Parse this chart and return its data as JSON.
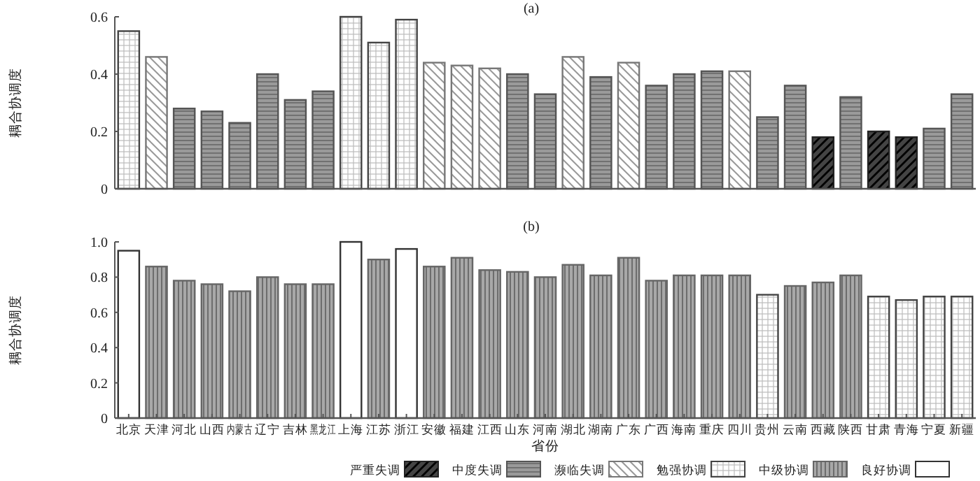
{
  "chart_data": [
    {
      "type": "bar",
      "title": "(a)",
      "ylabel": "耦合协调度",
      "categories": [
        null,
        null,
        null,
        null,
        null,
        null,
        null,
        null,
        null,
        null,
        null,
        null,
        null,
        null,
        null,
        null,
        null,
        null,
        null,
        null,
        null,
        null,
        null,
        null,
        null,
        null,
        null,
        null,
        null,
        null,
        null
      ],
      "tick_labels": "y",
      "ylim": [
        0,
        0.6
      ],
      "yticks": [
        0,
        0.2,
        0.4,
        0.6
      ],
      "series": [
        {
          "color": "#222222",
          "values": [
            null,
            null,
            null,
            null,
            null,
            null,
            null,
            null,
            null,
            null,
            null,
            null,
            null,
            null,
            null,
            null,
            null,
            null,
            null,
            null,
            null,
            null,
            null,
            null,
            null,
            0.18,
            null,
            0.2,
            0.18,
            null,
            null
          ]
        },
        {
          "color": "#555555",
          "values": [
            null,
            null,
            0.28,
            0.27,
            0.23,
            0.4,
            0.31,
            0.34,
            null,
            null,
            null,
            null,
            null,
            null,
            0.4,
            0.33,
            null,
            0.39,
            null,
            0.36,
            0.4,
            0.41,
            null,
            0.25,
            0.36,
            null,
            0.32,
            null,
            null,
            0.21,
            0.33
          ]
        },
        {
          "color": "#777777",
          "values": [
            null,
            0.46,
            null,
            null,
            null,
            null,
            null,
            null,
            null,
            null,
            null,
            0.44,
            0.43,
            0.42,
            null,
            null,
            0.46,
            null,
            0.44,
            null,
            null,
            null,
            0.41,
            null,
            null,
            null,
            null,
            null,
            null,
            null,
            null
          ]
        },
        {
          "color": "#444444",
          "values": [
            0.55,
            null,
            null,
            null,
            null,
            null,
            null,
            null,
            0.6,
            0.51,
            0.59,
            null,
            null,
            null,
            null,
            null,
            null,
            null,
            null,
            null,
            null,
            null,
            null,
            null,
            null,
            null,
            null,
            null,
            null,
            null,
            null
          ]
        }
      ]
    },
    {
      "type": "bar",
      "title": "(b)",
      "ylabel": "耦合协调度",
      "xlabel": "省份",
      "categories": [
        "北京",
        "天津",
        "河北",
        "山西",
        "内蒙古",
        "辽宁",
        "吉林",
        "黑龙江",
        "上海",
        "江苏",
        "浙江",
        "安徽",
        "福建",
        "江西",
        "山东",
        "河南",
        "湖北",
        "湖南",
        "广东",
        "广西",
        "海南",
        "重庆",
        "四川",
        "贵州",
        "云南",
        "西藏",
        "陕西",
        "甘肃",
        "青海",
        "宁夏",
        "新疆"
      ],
      "legend": "bottom",
      "ylim": [
        0,
        1
      ],
      "yticks": [
        0,
        0.2,
        0.4,
        0.6,
        0.8,
        {
          "value": 1,
          "label": "1.0"
        }
      ],
      "series": [
        {
          "name": "严重失调",
          "color": "#222222",
          "values": [
            null,
            null,
            null,
            null,
            null,
            null,
            null,
            null,
            null,
            null,
            null,
            null,
            null,
            null,
            null,
            null,
            null,
            null,
            null,
            null,
            null,
            null,
            null,
            null,
            null,
            null,
            null,
            null,
            null,
            null,
            null
          ]
        },
        {
          "name": "中度失调",
          "color": "#555555",
          "values": [
            null,
            null,
            null,
            null,
            null,
            null,
            null,
            null,
            null,
            null,
            null,
            null,
            null,
            null,
            null,
            null,
            null,
            null,
            null,
            null,
            null,
            null,
            null,
            null,
            null,
            null,
            null,
            null,
            null,
            null,
            null
          ]
        },
        {
          "name": "濒临失调",
          "color": "#777777",
          "values": [
            null,
            null,
            null,
            null,
            null,
            null,
            null,
            null,
            null,
            null,
            null,
            null,
            null,
            null,
            null,
            null,
            null,
            null,
            null,
            null,
            null,
            null,
            null,
            null,
            null,
            null,
            null,
            null,
            null,
            null,
            null
          ]
        },
        {
          "name": "勉强协调",
          "color": "#444444",
          "values": [
            null,
            null,
            null,
            null,
            null,
            null,
            null,
            null,
            null,
            null,
            null,
            null,
            null,
            null,
            null,
            null,
            null,
            null,
            null,
            null,
            null,
            null,
            null,
            0.7,
            null,
            null,
            null,
            0.69,
            0.67,
            0.69,
            0.69
          ]
        },
        {
          "name": "中级协调",
          "color": "#666666",
          "values": [
            null,
            0.86,
            0.78,
            0.76,
            0.72,
            0.8,
            0.76,
            0.76,
            null,
            0.9,
            null,
            0.86,
            0.91,
            0.84,
            0.83,
            0.8,
            0.87,
            0.81,
            0.91,
            0.78,
            0.81,
            0.81,
            0.81,
            null,
            0.75,
            0.77,
            0.81,
            null,
            null,
            null,
            null
          ]
        },
        {
          "name": "良好协调",
          "color": "#333333",
          "values": [
            0.95,
            null,
            null,
            null,
            null,
            null,
            null,
            null,
            1.0,
            null,
            0.96,
            null,
            null,
            null,
            null,
            null,
            null,
            null,
            null,
            null,
            null,
            null,
            null,
            null,
            null,
            null,
            null,
            null,
            null,
            null,
            null
          ]
        }
      ]
    }
  ]
}
